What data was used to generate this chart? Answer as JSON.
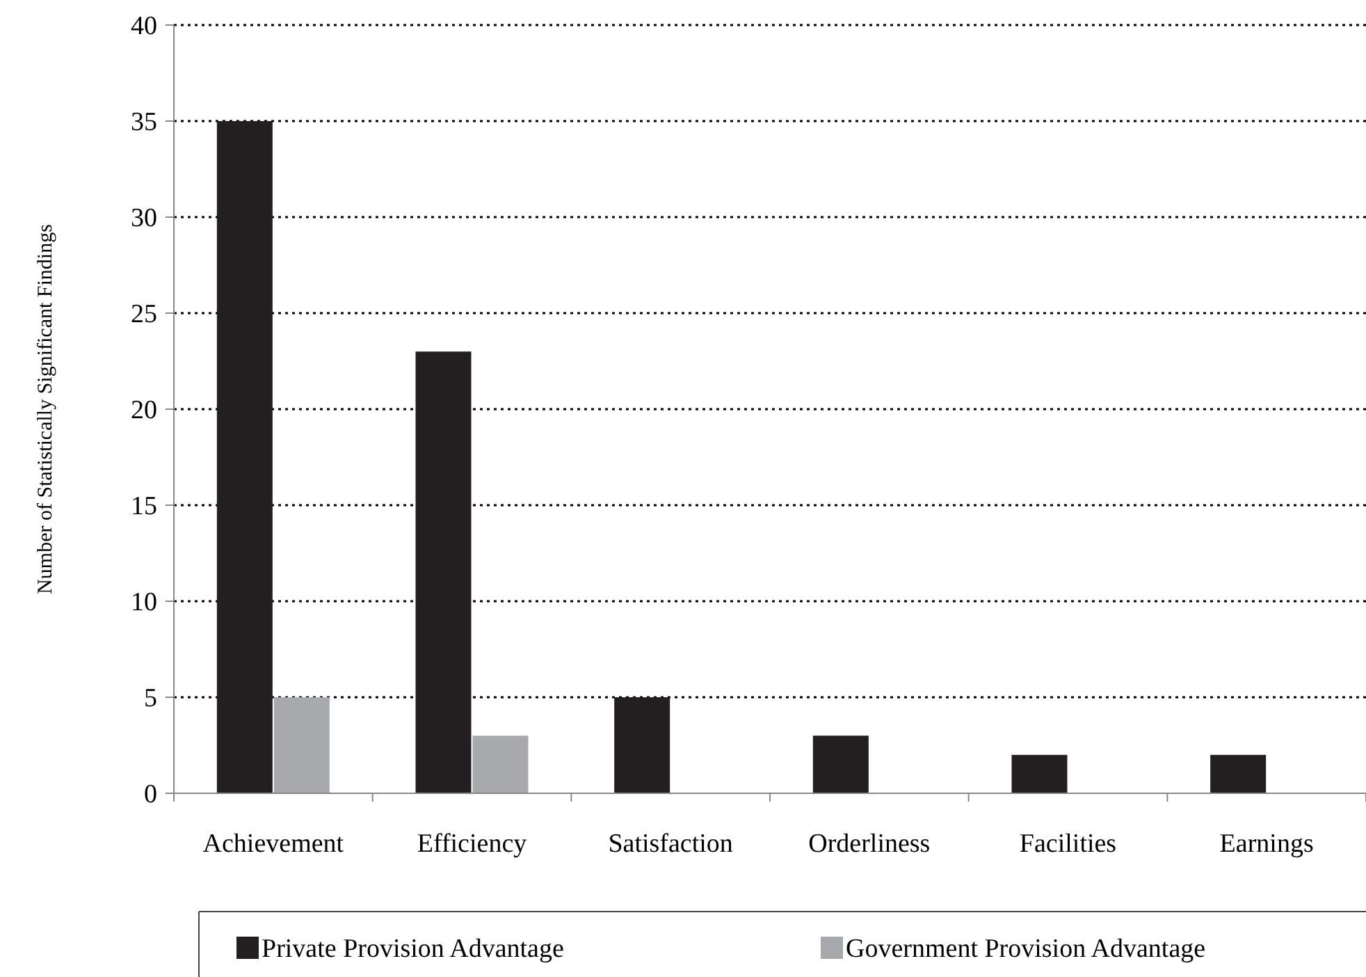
{
  "chart_data": {
    "type": "bar",
    "ylabel": "Number of Statistically Significant Findings",
    "categories": [
      "Achievement",
      "Efficiency",
      "Satisfaction",
      "Orderliness",
      "Facilities",
      "Earnings"
    ],
    "series": [
      {
        "name": "Private Provision Advantage",
        "color": "#231f20",
        "values": [
          35,
          23,
          5,
          3,
          2,
          2
        ]
      },
      {
        "name": "Government Provision Advantage",
        "color": "#a7a9ac",
        "values": [
          5,
          3,
          0,
          0,
          0,
          0
        ]
      }
    ],
    "ylim": [
      0,
      40
    ],
    "yticks": [
      0,
      5,
      10,
      15,
      20,
      25,
      30,
      35,
      40
    ],
    "grid": "y",
    "legend": "bottom"
  }
}
